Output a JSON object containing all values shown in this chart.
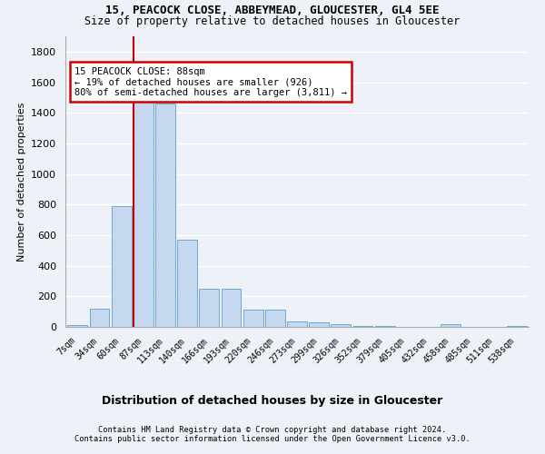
{
  "title1": "15, PEACOCK CLOSE, ABBEYMEAD, GLOUCESTER, GL4 5EE",
  "title2": "Size of property relative to detached houses in Gloucester",
  "xlabel": "Distribution of detached houses by size in Gloucester",
  "ylabel": "Number of detached properties",
  "bar_categories": [
    "7sqm",
    "34sqm",
    "60sqm",
    "87sqm",
    "113sqm",
    "140sqm",
    "166sqm",
    "193sqm",
    "220sqm",
    "246sqm",
    "273sqm",
    "299sqm",
    "326sqm",
    "352sqm",
    "379sqm",
    "405sqm",
    "432sqm",
    "458sqm",
    "485sqm",
    "511sqm",
    "538sqm"
  ],
  "bar_values": [
    10,
    120,
    790,
    1490,
    1460,
    570,
    250,
    250,
    110,
    110,
    35,
    30,
    20,
    5,
    5,
    0,
    0,
    15,
    0,
    0,
    5
  ],
  "bar_color": "#c5d8f0",
  "bar_edge_color": "#6aaad4",
  "annotation_title": "15 PEACOCK CLOSE: 88sqm",
  "annotation_line1": "← 19% of detached houses are smaller (926)",
  "annotation_line2": "80% of semi-detached houses are larger (3,811) →",
  "annotation_box_color": "#ffffff",
  "annotation_box_edge": "#cc0000",
  "vline_color": "#cc0000",
  "ylim": [
    0,
    1900
  ],
  "yticks": [
    0,
    200,
    400,
    600,
    800,
    1000,
    1200,
    1400,
    1600,
    1800
  ],
  "footer1": "Contains HM Land Registry data © Crown copyright and database right 2024.",
  "footer2": "Contains public sector information licensed under the Open Government Licence v3.0.",
  "bg_color": "#eef2f8",
  "grid_color": "#ffffff"
}
